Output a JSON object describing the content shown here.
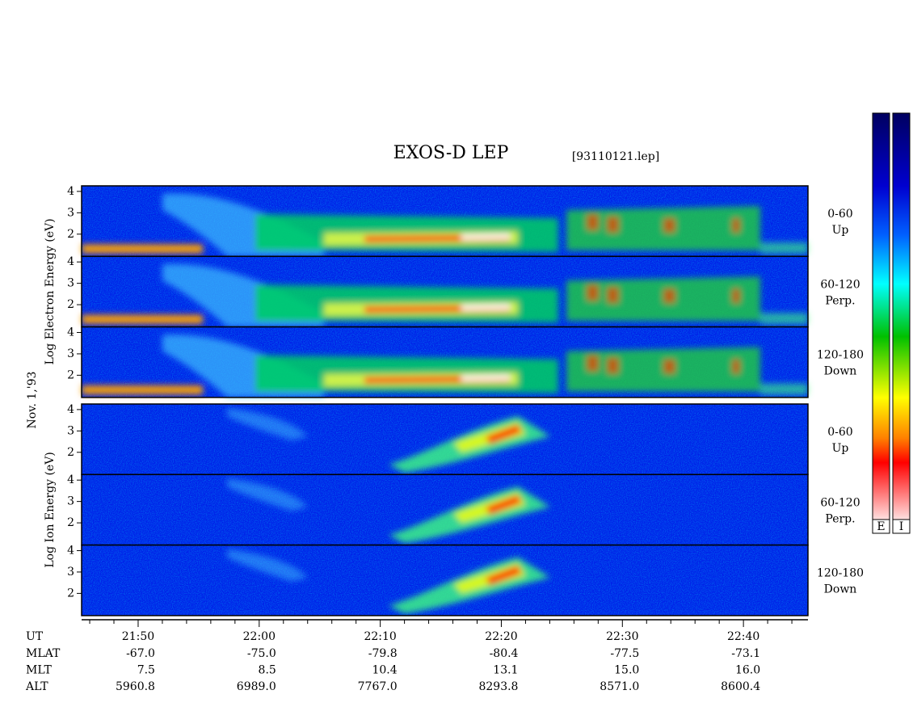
{
  "chart_data": {
    "type": "spectrogram",
    "title": "EXOS-D LEP",
    "subtitle": "[93110121.lep]",
    "date_label": "Nov. 1,'93",
    "groups": [
      {
        "ylabel": "Log Electron Energy (eV)",
        "panels": [
          {
            "label": "0-60",
            "sublabel": "Up"
          },
          {
            "label": "60-120",
            "sublabel": "Perp."
          },
          {
            "label": "120-180",
            "sublabel": "Down"
          }
        ]
      },
      {
        "ylabel": "Log Ion Energy (eV)",
        "panels": [
          {
            "label": "0-60",
            "sublabel": "Up"
          },
          {
            "label": "60-120",
            "sublabel": "Perp."
          },
          {
            "label": "120-180",
            "sublabel": "Down"
          }
        ]
      }
    ],
    "ylim": [
      0.96,
      4.26
    ],
    "yticks": [
      2,
      3,
      4
    ],
    "xlim": [
      1305.33,
      1365.33
    ],
    "xlabel": "UT",
    "xticks": [
      {
        "value": 1310,
        "label": "21:50"
      },
      {
        "value": 1320,
        "label": "22:00"
      },
      {
        "value": 1330,
        "label": "22:10"
      },
      {
        "value": 1340,
        "label": "22:20"
      },
      {
        "value": 1350,
        "label": "22:30"
      },
      {
        "value": 1360,
        "label": "22:40"
      }
    ],
    "xminorticks": [
      1306,
      1308,
      1312,
      1314,
      1316,
      1318,
      1322,
      1324,
      1326,
      1328,
      1332,
      1334,
      1336,
      1338,
      1342,
      1344,
      1346,
      1348,
      1352,
      1354,
      1356,
      1358,
      1362,
      1364
    ],
    "ephemeris": [
      {
        "label": "MLAT",
        "values": [
          "-67.0",
          "-75.0",
          "-79.8",
          "-80.4",
          "-77.5",
          "-73.1"
        ]
      },
      {
        "label": "MLT",
        "values": [
          "7.5",
          "8.5",
          "10.4",
          "13.1",
          "15.0",
          "16.0"
        ]
      },
      {
        "label": "ALT",
        "values": [
          "5960.8",
          "6989.0",
          "7767.0",
          "8293.8",
          "8571.0",
          "8600.4"
        ]
      }
    ],
    "colorbars": [
      "E",
      "I"
    ]
  }
}
